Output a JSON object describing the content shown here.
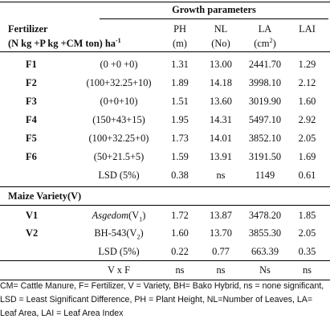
{
  "header": {
    "group": "Growth parameters",
    "fertilizer": "Fertilizer",
    "rate": "(N kg +P kg +CM ton) ha",
    "rate_sup": "-1",
    "columns": [
      "PH",
      "NL",
      "LA",
      "LAI"
    ],
    "units": {
      "ph": "(m)",
      "nl": "(No)",
      "la": "(cm",
      "la_sup": "2",
      "la_close": ")"
    }
  },
  "fertilizer_rows": [
    {
      "id": "F1",
      "rate": "(0 +0 +0)",
      "ph": "1.31",
      "nl": "13.00",
      "la": "2441.70",
      "lai": "1.29"
    },
    {
      "id": "F2",
      "rate": "(100+32.25+10)",
      "ph": "1.89",
      "nl": "14.18",
      "la": "3998.10",
      "lai": "2.12"
    },
    {
      "id": "F3",
      "rate": "(0+0+10)",
      "ph": "1.51",
      "nl": "13.60",
      "la": "3019.90",
      "lai": "1.60"
    },
    {
      "id": "F4",
      "rate": "(150+43+15)",
      "ph": "1.95",
      "nl": "14.31",
      "la": "5497.10",
      "lai": "2.92"
    },
    {
      "id": "F5",
      "rate": "(100+32.25+0)",
      "ph": "1.73",
      "nl": "14.01",
      "la": "3852.10",
      "lai": "2.05"
    },
    {
      "id": "F6",
      "rate": "(50+21.5+5)",
      "ph": "1.59",
      "nl": "13.91",
      "la": "3191.50",
      "lai": "1.69"
    }
  ],
  "fertilizer_lsd": {
    "label": "LSD (5%)",
    "ph": "0.38",
    "nl": "ns",
    "la": "1149",
    "lai": "0.61"
  },
  "variety_title": "Maize Variety(V)",
  "variety_rows": [
    {
      "id": "V1",
      "name": "Asgedom",
      "code": "(V",
      "code_sub": "1",
      "code_close": ")",
      "ph": "1.72",
      "nl": "13.87",
      "la": "3478.20",
      "lai": "1.85"
    },
    {
      "id": "V2",
      "name": "BH-543",
      "code": "(V",
      "code_sub": "2",
      "code_close": ")",
      "ph": "1.60",
      "nl": "13.70",
      "la": "3855.30",
      "lai": "2.05"
    }
  ],
  "variety_lsd": {
    "label": "LSD (5%)",
    "ph": "0.22",
    "nl": "0.77",
    "la": "663.39",
    "lai": "0.35"
  },
  "interaction": {
    "label": "V x F",
    "ph": "ns",
    "nl": "ns",
    "la": "Ns",
    "lai": "ns"
  },
  "footnote": "CM= Cattle Manure, F= Fertilizer,  V = Variety, BH= Bako Hybrid, ns = none significant, LSD = Least Significant Difference, PH = Plant Height, NL=Number of Leaves, LA= Leaf Area, LAI = Leaf Area Index"
}
